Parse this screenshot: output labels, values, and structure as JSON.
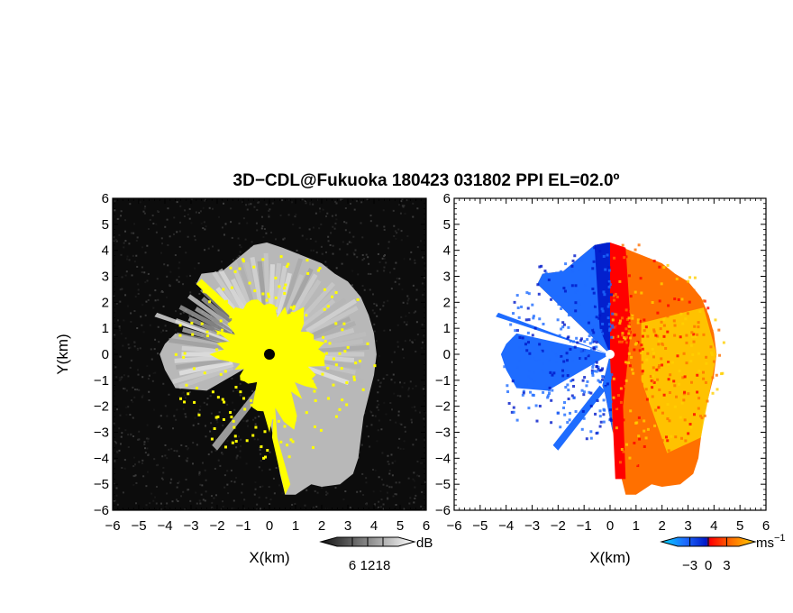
{
  "chart_data": [
    {
      "type": "heatmap",
      "panel": "reflectivity-snr",
      "title": "3D−CDL@Fukuoka 180423 031802 PPI EL=02.0º",
      "xlabel": "X(km)",
      "ylabel": "Y(km)",
      "xlim": [
        -6,
        6
      ],
      "ylim": [
        -6,
        6
      ],
      "x_ticks": [
        "−6",
        "−5",
        "−4",
        "−3",
        "−2",
        "−1",
        "0",
        "1",
        "2",
        "3",
        "4",
        "5",
        "6"
      ],
      "y_ticks": [
        "−6",
        "−5",
        "−4",
        "−3",
        "−2",
        "−1",
        "0",
        "1",
        "2",
        "3",
        "4",
        "5",
        "6"
      ],
      "background_color": "#0c0c0c",
      "saturation_color": "#ffff00",
      "colorbar": {
        "unit": "dB",
        "ticks": [
          "6",
          "12",
          "18"
        ],
        "range": [
          0,
          24
        ],
        "colors": [
          "#111111",
          "#ffffff"
        ]
      }
    },
    {
      "type": "heatmap",
      "panel": "doppler-velocity",
      "xlabel": "X(km)",
      "xlim": [
        -6,
        6
      ],
      "ylim": [
        -6,
        6
      ],
      "x_ticks": [
        "−6",
        "−5",
        "−4",
        "−3",
        "−2",
        "−1",
        "0",
        "1",
        "2",
        "3",
        "4",
        "5",
        "6"
      ],
      "y_ticks": [
        "−6",
        "−5",
        "−4",
        "−3",
        "−2",
        "−1",
        "0",
        "1",
        "2",
        "3",
        "4",
        "5",
        "6"
      ],
      "colorbar": {
        "unit": "ms",
        "unit_superscript": "−1",
        "ticks": [
          "−3",
          "0",
          "3"
        ],
        "range": [
          -5,
          5
        ],
        "colors": [
          "#00d8ff",
          "#1e6cff",
          "#0018c8",
          "#ff0000",
          "#ff7000",
          "#ffd000"
        ]
      }
    }
  ]
}
